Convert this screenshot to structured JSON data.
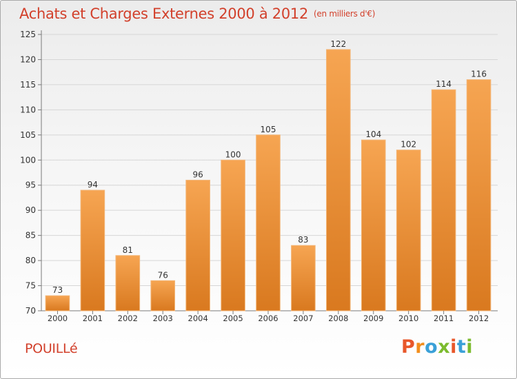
{
  "header": {
    "title": "Achats et Charges Externes 2000 à 2012",
    "subtitle": "(en milliers d'€)"
  },
  "footer": {
    "commune": "POUILLé",
    "brand": "Proxiti",
    "brand_colors": [
      "#e8572a",
      "#f28e1d",
      "#3aa0d8",
      "#7cbb2e",
      "#e8572a",
      "#3aa0d8",
      "#7cbb2e"
    ]
  },
  "colors": {
    "bar_top": "#f6a552",
    "bar_bottom": "#d9791f",
    "accent": "#d2402b",
    "axis": "#7a7a7a",
    "grid": "#d6d6d6"
  },
  "chart_data": {
    "type": "bar",
    "title": "Achats et Charges Externes 2000 à 2012",
    "subtitle": "(en milliers d'€)",
    "categories": [
      "2000",
      "2001",
      "2002",
      "2003",
      "2004",
      "2005",
      "2006",
      "2007",
      "2008",
      "2009",
      "2010",
      "2011",
      "2012"
    ],
    "values": [
      73,
      94,
      81,
      76,
      96,
      100,
      105,
      83,
      122,
      104,
      102,
      114,
      116
    ],
    "ylim": [
      70,
      125
    ],
    "yticks": [
      70,
      75,
      80,
      85,
      90,
      95,
      100,
      105,
      110,
      115,
      120,
      125
    ],
    "grid": true,
    "legend": "none"
  }
}
